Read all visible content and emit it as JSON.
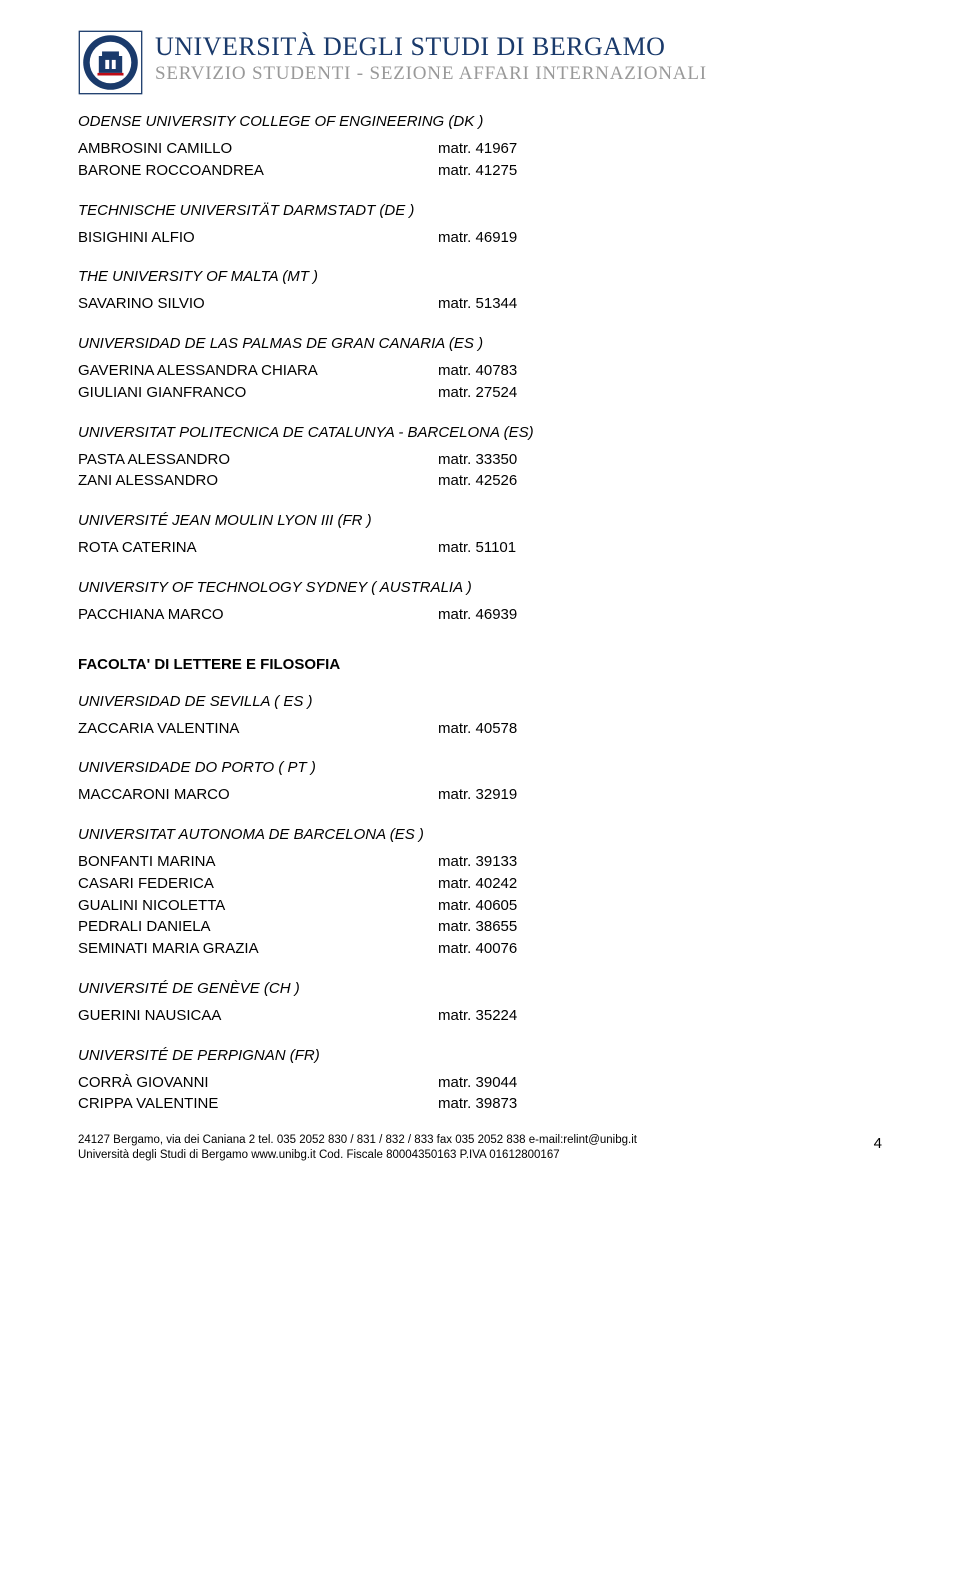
{
  "header": {
    "university": "UNIVERSITÀ DEGLI STUDI DI BERGAMO",
    "department": "SERVIZIO STUDENTI - SEZIONE AFFARI INTERNAZIONALI",
    "seal_colors": {
      "outer": "#1a3a6b",
      "inner_bg": "#fff",
      "accent": "#be0c17"
    }
  },
  "sections": [
    {
      "heading": "ODENSE UNIVERSITY COLLEGE OF ENGINEERING  (DK )",
      "style": "italic",
      "entries": [
        {
          "name": "AMBROSINI CAMILLO",
          "matr": "matr. 41967"
        },
        {
          "name": "BARONE  ROCCOANDREA",
          "matr": "matr. 41275"
        }
      ]
    },
    {
      "heading": "TECHNISCHE UNIVERSITÄT DARMSTADT (DE )",
      "style": "italic",
      "entries": [
        {
          "name": "BISIGHINI  ALFIO",
          "matr": "matr. 46919"
        }
      ]
    },
    {
      "heading": "THE UNIVERSITY OF MALTA  (MT )",
      "style": "italic",
      "entries": [
        {
          "name": "SAVARINO SILVIO",
          "matr": "matr. 51344"
        }
      ]
    },
    {
      "heading": "UNIVERSIDAD DE LAS PALMAS DE GRAN CANARIA  (ES )",
      "style": "italic",
      "entries": [
        {
          "name": "GAVERINA ALESSANDRA CHIARA",
          "matr": "matr. 40783"
        },
        {
          "name": "GIULIANI  GIANFRANCO",
          "matr": "matr. 27524"
        }
      ]
    },
    {
      "heading": "UNIVERSITAT POLITECNICA DE CATALUNYA - BARCELONA  (ES)",
      "style": "italic",
      "entries": [
        {
          "name": "PASTA ALESSANDRO",
          "matr": "matr. 33350"
        },
        {
          "name": "ZANI ALESSANDRO",
          "matr": "matr. 42526"
        }
      ]
    },
    {
      "heading": "UNIVERSITÉ JEAN MOULIN LYON III (FR )",
      "style": "italic",
      "entries": [
        {
          "name": "ROTA CATERINA",
          "matr": "matr. 51101"
        }
      ]
    },
    {
      "heading": "UNIVERSITY OF TECHNOLOGY SYDNEY  ( AUSTRALIA )",
      "style": "italic",
      "entries": [
        {
          "name": "PACCHIANA MARCO",
          "matr": "matr. 46939"
        }
      ]
    },
    {
      "heading": "FACOLTA' DI LETTERE E FILOSOFIA",
      "style": "bold",
      "entries": []
    },
    {
      "heading": "UNIVERSIDAD DE SEVILLA  ( ES )",
      "style": "italic",
      "entries": [
        {
          "name": "ZACCARIA  VALENTINA",
          "matr": "matr. 40578"
        }
      ]
    },
    {
      "heading": "UNIVERSIDADE DO PORTO ( PT )",
      "style": "italic",
      "entries": [
        {
          "name": "MACCARONI  MARCO",
          "matr": "matr. 32919"
        }
      ]
    },
    {
      "heading": "UNIVERSITAT AUTONOMA DE BARCELONA  (ES )",
      "style": "italic",
      "entries": [
        {
          "name": "BONFANTI  MARINA",
          "matr": "matr. 39133"
        },
        {
          "name": "CASARI  FEDERICA",
          "matr": "matr. 40242"
        },
        {
          "name": "GUALINI  NICOLETTA",
          "matr": "matr. 40605"
        },
        {
          "name": "PEDRALI  DANIELA",
          "matr": "matr. 38655"
        },
        {
          "name": "SEMINATI MARIA GRAZIA",
          "matr": "matr. 40076"
        }
      ]
    },
    {
      "heading": "UNIVERSITÉ DE GENÈVE (CH )",
      "style": "italic",
      "entries": [
        {
          "name": "GUERINI  NAUSICAA",
          "matr": "matr. 35224"
        }
      ]
    },
    {
      "heading": "UNIVERSITÉ DE PERPIGNAN  (FR)",
      "style": "italic",
      "entries": [
        {
          "name": "CORRÀ  GIOVANNI",
          "matr": "matr. 39044"
        },
        {
          "name": "CRIPPA  VALENTINE",
          "matr": "matr. 39873"
        }
      ]
    }
  ],
  "footer": {
    "line1": "24127 Bergamo, via dei Caniana 2  tel. 035 2052 830 / 831 / 832 / 833  fax 035 2052 838 e-mail:relint@unibg.it",
    "line2": "Università degli Studi di Bergamo  www.unibg.it  Cod. Fiscale 80004350163  P.IVA 01612800167",
    "page": "4"
  }
}
